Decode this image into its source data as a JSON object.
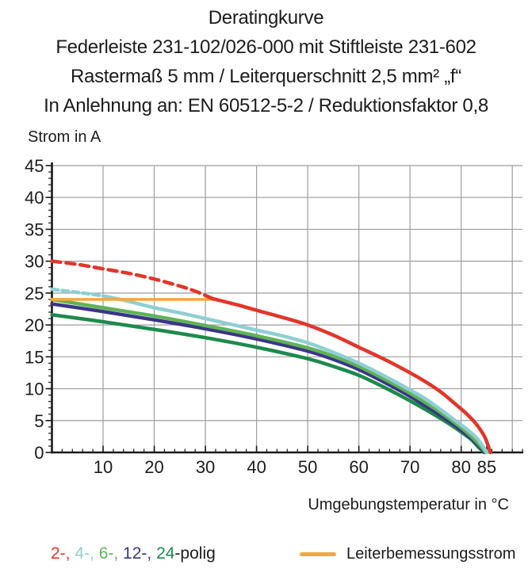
{
  "title": {
    "lines": [
      "Deratingkurve",
      "Federleiste 231-102/026-000 mit Stiftleiste 231-602",
      "Rastermaß 5 mm / Leiterquerschnitt 2,5 mm² „f“",
      "In Anlehnung an: EN 60512-5-2 / Reduktionsfaktor 0,8"
    ]
  },
  "chart_data": {
    "type": "line",
    "title": "Deratingkurve",
    "xlabel": "Umgebungstemperatur in °C",
    "ylabel": "Strom in A",
    "xlim": [
      0,
      92
    ],
    "ylim": [
      0,
      45
    ],
    "grid": true,
    "grid_color": "#9e9e9e",
    "axis_color": "#1a1a1a",
    "x_major_ticks": [
      10,
      20,
      30,
      40,
      50,
      60,
      70,
      80,
      85
    ],
    "x_gridlines": [
      10,
      20,
      30,
      40,
      50,
      60,
      70,
      80,
      90
    ],
    "y_major_ticks": [
      0,
      5,
      10,
      15,
      20,
      25,
      30,
      35,
      40,
      45
    ],
    "y_gridlines": [
      5,
      10,
      15,
      20,
      25,
      30,
      35,
      40,
      45
    ],
    "x_minor_step": 2,
    "y_minor_step": 1,
    "series": [
      {
        "name": "24-polig",
        "color": "#1d8a4b",
        "width": 4.5,
        "segments": [
          {
            "dashed": false,
            "dash": "",
            "points": [
              [
                0,
                21.6
              ],
              [
                10,
                20.5
              ],
              [
                20,
                19.3
              ],
              [
                30,
                18.0
              ],
              [
                40,
                16.5
              ],
              [
                50,
                14.7
              ],
              [
                55,
                13.5
              ],
              [
                60,
                12.1
              ],
              [
                65,
                10.2
              ],
              [
                70,
                8.1
              ],
              [
                75,
                5.8
              ],
              [
                78,
                4.3
              ],
              [
                80,
                3.2
              ],
              [
                82,
                2.0
              ],
              [
                83.4,
                0.8
              ],
              [
                84.5,
                0
              ]
            ]
          }
        ]
      },
      {
        "name": "12-polig",
        "color": "#3a3589",
        "width": 4.5,
        "segments": [
          {
            "dashed": false,
            "dash": "",
            "points": [
              [
                0,
                23.3
              ],
              [
                10,
                22.1
              ],
              [
                20,
                20.8
              ],
              [
                30,
                19.4
              ],
              [
                40,
                17.8
              ],
              [
                50,
                15.9
              ],
              [
                55,
                14.6
              ],
              [
                60,
                13.0
              ],
              [
                65,
                11.0
              ],
              [
                70,
                8.8
              ],
              [
                75,
                6.3
              ],
              [
                78,
                4.7
              ],
              [
                80,
                3.5
              ],
              [
                82,
                2.2
              ],
              [
                83.6,
                0.9
              ],
              [
                84.6,
                0
              ]
            ]
          }
        ]
      },
      {
        "name": "6-polig",
        "color": "#5fb357",
        "width": 4.5,
        "segments": [
          {
            "dashed": false,
            "dash": "",
            "points": [
              [
                0,
                24.0
              ],
              [
                10,
                22.7
              ],
              [
                20,
                21.4
              ],
              [
                30,
                19.9
              ],
              [
                40,
                18.3
              ],
              [
                50,
                16.4
              ],
              [
                55,
                15.1
              ],
              [
                60,
                13.5
              ],
              [
                65,
                11.5
              ],
              [
                70,
                9.3
              ],
              [
                75,
                6.8
              ],
              [
                78,
                5.1
              ],
              [
                80,
                3.9
              ],
              [
                82,
                2.5
              ],
              [
                83.8,
                1.0
              ],
              [
                84.8,
                0
              ]
            ]
          }
        ]
      },
      {
        "name": "4-polig",
        "color": "#8ecfd4",
        "width": 4.5,
        "segments": [
          {
            "dashed": true,
            "dash": "8 5",
            "points": [
              [
                0,
                25.6
              ],
              [
                4,
                25.2
              ],
              [
                8,
                24.8
              ],
              [
                11,
                24.4
              ]
            ]
          },
          {
            "dashed": false,
            "dash": "",
            "points": [
              [
                11,
                24.4
              ],
              [
                15,
                23.7
              ],
              [
                20,
                22.7
              ],
              [
                25,
                21.9
              ],
              [
                30,
                21.0
              ],
              [
                35,
                20.1
              ],
              [
                40,
                19.2
              ],
              [
                45,
                18.3
              ],
              [
                50,
                17.2
              ],
              [
                55,
                15.7
              ],
              [
                60,
                14.0
              ],
              [
                65,
                12.0
              ],
              [
                70,
                9.8
              ],
              [
                73,
                8.4
              ],
              [
                76,
                6.7
              ],
              [
                79,
                4.9
              ],
              [
                81,
                3.7
              ],
              [
                83,
                2.3
              ],
              [
                84.2,
                1.0
              ],
              [
                85,
                0
              ]
            ]
          }
        ]
      },
      {
        "name": "Leiterbemessungsstrom",
        "color": "#f3a73f",
        "width": 3.5,
        "segments": [
          {
            "dashed": false,
            "dash": "",
            "points": [
              [
                0,
                24
              ],
              [
                31.5,
                24
              ]
            ]
          }
        ]
      },
      {
        "name": "2-polig",
        "color": "#e2362a",
        "width": 4.5,
        "segments": [
          {
            "dashed": true,
            "dash": "11 7",
            "points": [
              [
                0,
                30
              ],
              [
                5,
                29.5
              ],
              [
                10,
                28.8
              ],
              [
                15,
                28.1
              ],
              [
                20,
                27.2
              ],
              [
                25,
                26.1
              ],
              [
                28,
                25.3
              ],
              [
                31.5,
                24.1
              ]
            ]
          },
          {
            "dashed": false,
            "dash": "",
            "points": [
              [
                31.5,
                24.1
              ],
              [
                36,
                23.2
              ],
              [
                40,
                22.3
              ],
              [
                45,
                21.2
              ],
              [
                50,
                20.0
              ],
              [
                55,
                18.4
              ],
              [
                60,
                16.5
              ],
              [
                65,
                14.6
              ],
              [
                70,
                12.5
              ],
              [
                73,
                11.1
              ],
              [
                76,
                9.5
              ],
              [
                79,
                7.5
              ],
              [
                81,
                6.1
              ],
              [
                83,
                4.4
              ],
              [
                84.5,
                2.6
              ],
              [
                85.3,
                1.0
              ],
              [
                85.7,
                0
              ]
            ]
          }
        ]
      }
    ]
  },
  "axis_titles": {
    "y": "Strom in A",
    "x": "Umgebungstemperatur in °C"
  },
  "legend": {
    "poles_parts": [
      {
        "text": "2-, ",
        "color": "#e2362a"
      },
      {
        "text": "4-, ",
        "color": "#8ecfd4"
      },
      {
        "text": "6-, ",
        "color": "#5fb357"
      },
      {
        "text": "12-, ",
        "color": "#3a3589"
      },
      {
        "text": "24",
        "color": "#1d8a4b"
      },
      {
        "text": "-polig",
        "color": "#1c1c1c"
      }
    ],
    "rated": {
      "label": "Leiterbemessungsstrom",
      "color": "#f3a73f"
    }
  }
}
